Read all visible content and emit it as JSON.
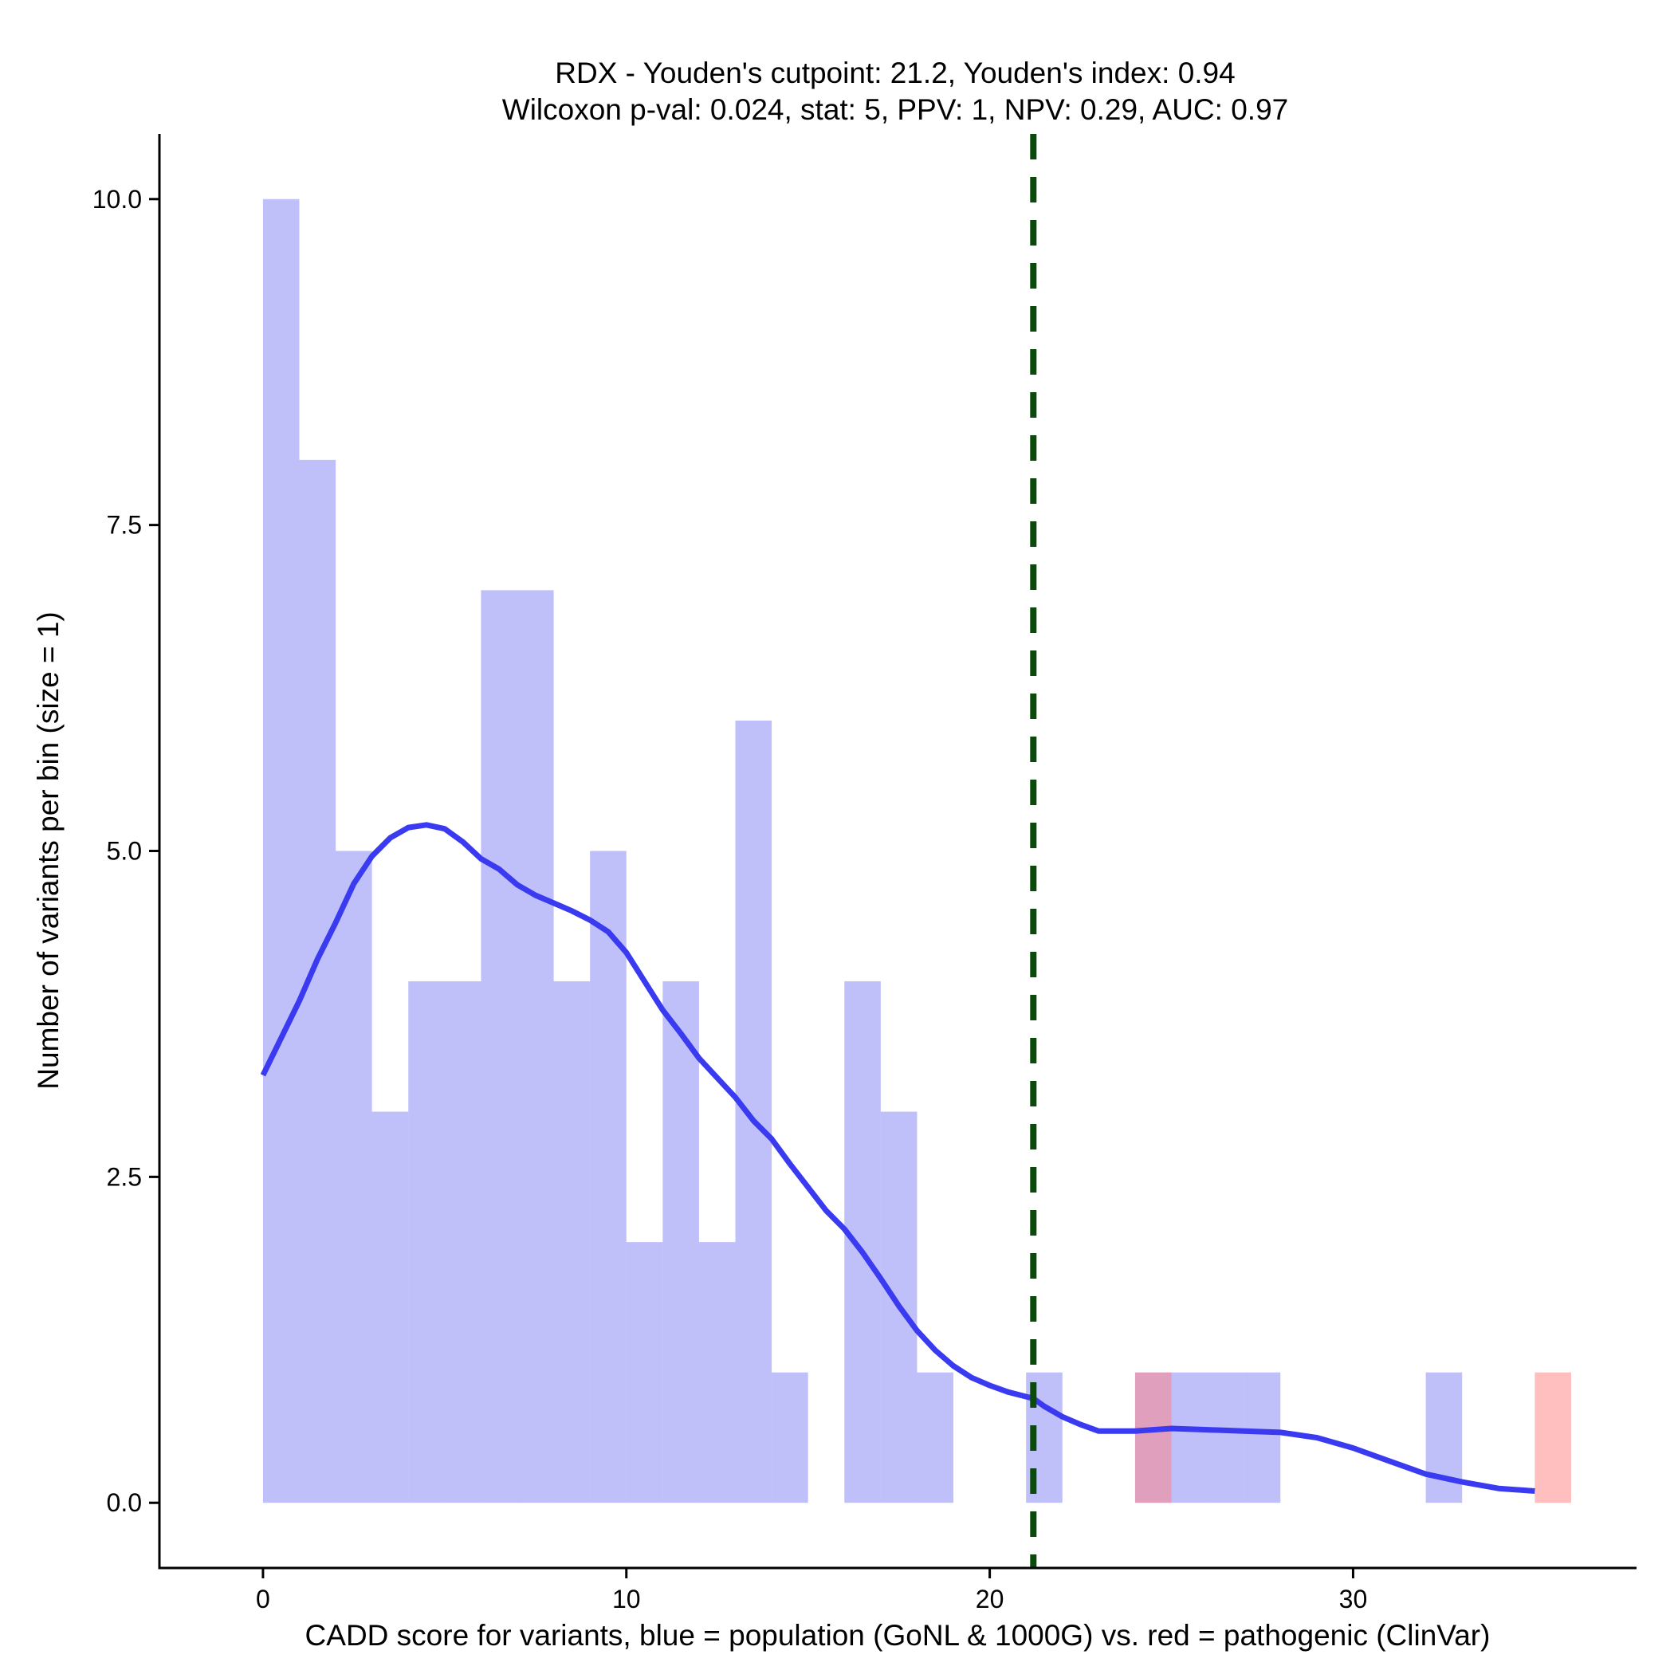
{
  "chart_data": {
    "type": "bar",
    "title_line1": "RDX - Youden's cutpoint: 21.2, Youden's index: 0.94",
    "title_line2": "Wilcoxon p-val: 0.024, stat: 5, PPV: 1, NPV: 0.29, AUC: 0.97",
    "xlabel": "CADD score for variants, blue = population (GoNL & 1000G) vs. red = pathogenic (ClinVar)",
    "ylabel": "Number of variants per bin (size = 1)",
    "xlim": [
      -2.85,
      37.8
    ],
    "ylim": [
      -0.5,
      10.5
    ],
    "x_ticks": [
      0,
      10,
      20,
      30
    ],
    "x_tick_labels": [
      "0",
      "10",
      "20",
      "30"
    ],
    "y_ticks": [
      0,
      2.5,
      5,
      7.5,
      10
    ],
    "y_tick_labels": [
      "0.0",
      "2.5",
      "5.0",
      "7.5",
      "10.0"
    ],
    "bin_width": 1,
    "series": [
      {
        "name": "population (GoNL & 1000G)",
        "color": "#8080f5",
        "opacity": 0.5,
        "bins": [
          {
            "x0": 0,
            "count": 10
          },
          {
            "x0": 1,
            "count": 8
          },
          {
            "x0": 2,
            "count": 5
          },
          {
            "x0": 3,
            "count": 3
          },
          {
            "x0": 4,
            "count": 4
          },
          {
            "x0": 5,
            "count": 4
          },
          {
            "x0": 6,
            "count": 7
          },
          {
            "x0": 7,
            "count": 7
          },
          {
            "x0": 8,
            "count": 4
          },
          {
            "x0": 9,
            "count": 5
          },
          {
            "x0": 10,
            "count": 2
          },
          {
            "x0": 11,
            "count": 4
          },
          {
            "x0": 12,
            "count": 2
          },
          {
            "x0": 13,
            "count": 6
          },
          {
            "x0": 14,
            "count": 1
          },
          {
            "x0": 16,
            "count": 4
          },
          {
            "x0": 17,
            "count": 3
          },
          {
            "x0": 18,
            "count": 1
          },
          {
            "x0": 21,
            "count": 1
          },
          {
            "x0": 24,
            "count": 1
          },
          {
            "x0": 25,
            "count": 1
          },
          {
            "x0": 26,
            "count": 1
          },
          {
            "x0": 27,
            "count": 1
          },
          {
            "x0": 32,
            "count": 1
          }
        ]
      },
      {
        "name": "pathogenic (ClinVar)",
        "color": "#ff8080",
        "opacity": 0.5,
        "bins": [
          {
            "x0": 24,
            "count": 1
          },
          {
            "x0": 35,
            "count": 1
          }
        ]
      }
    ],
    "density_line": {
      "name": "population density",
      "color": "#3a3af0",
      "x": [
        0,
        1,
        1.5,
        2,
        2.5,
        3,
        3.5,
        4,
        4.5,
        5,
        5.5,
        6,
        6.5,
        7,
        7.5,
        8,
        8.5,
        9,
        9.5,
        10,
        10.5,
        11,
        11.5,
        12,
        12.5,
        13,
        13.5,
        14,
        14.5,
        15,
        15.5,
        16,
        16.5,
        17,
        17.5,
        18,
        18.5,
        19,
        19.5,
        20,
        20.5,
        21.2,
        21.5,
        22,
        22.5,
        23,
        24,
        25,
        26,
        27,
        28,
        29,
        30,
        31,
        32,
        33,
        34,
        35
      ],
      "y": [
        3.28,
        3.85,
        4.17,
        4.45,
        4.75,
        4.96,
        5.1,
        5.18,
        5.2,
        5.17,
        5.07,
        4.94,
        4.86,
        4.74,
        4.66,
        4.6,
        4.54,
        4.47,
        4.38,
        4.22,
        4.0,
        3.78,
        3.6,
        3.41,
        3.26,
        3.11,
        2.93,
        2.79,
        2.6,
        2.42,
        2.24,
        2.1,
        1.92,
        1.72,
        1.51,
        1.32,
        1.17,
        1.05,
        0.96,
        0.9,
        0.85,
        0.8,
        0.74,
        0.66,
        0.6,
        0.55,
        0.55,
        0.57,
        0.56,
        0.55,
        0.54,
        0.5,
        0.42,
        0.32,
        0.22,
        0.16,
        0.11,
        0.09
      ]
    },
    "cutpoint": {
      "x": 21.2,
      "label": "Youden's cutpoint",
      "color": "#0a4a0a"
    }
  }
}
